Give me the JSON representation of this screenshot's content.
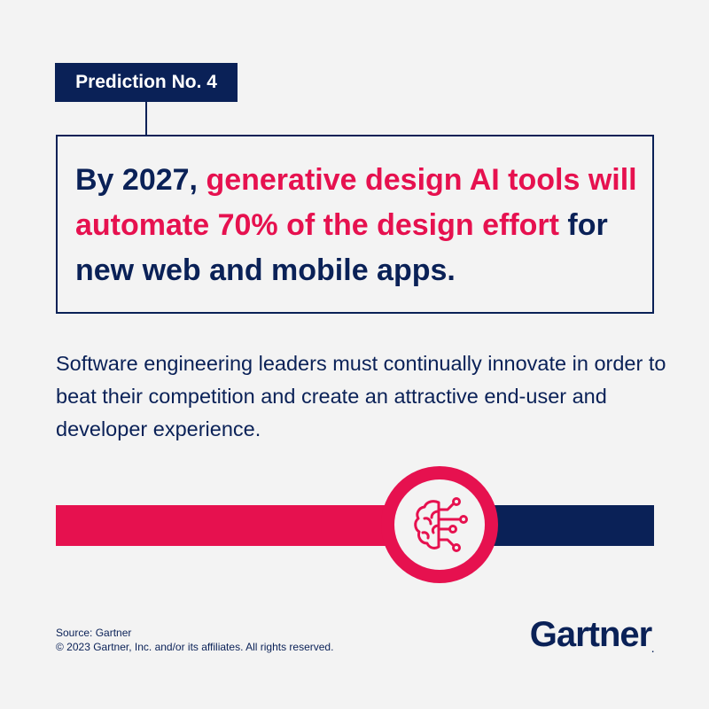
{
  "tag": {
    "label": "Prediction No. 4"
  },
  "headline": {
    "part1": "By 2027, ",
    "highlight": "generative design AI tools will automate 70% of the design effort",
    "part2": " for new web and mobile apps."
  },
  "body": {
    "text": "Software engineering leaders must continually innovate in order to beat their competition and create an attractive end-user and developer experience."
  },
  "emblem": {
    "icon": "brain-circuit-icon"
  },
  "footer": {
    "source": "Source: Gartner",
    "copyright": "© 2023 Gartner, Inc. and/or its affiliates. All rights reserved."
  },
  "logo": {
    "text": "Gartner",
    "mark": "."
  },
  "colors": {
    "navy": "#0a2157",
    "accent": "#e6114f",
    "background": "#f3f3f3"
  }
}
